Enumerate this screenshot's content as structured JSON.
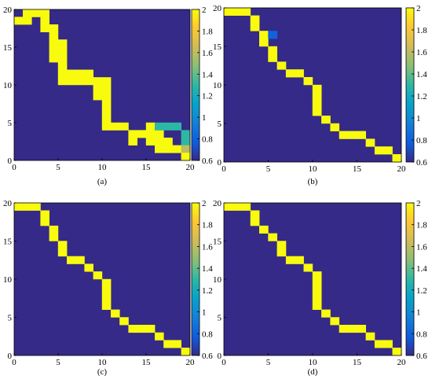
{
  "chart_data": [
    {
      "type": "heatmap",
      "caption": "(a)",
      "grid_size": 20,
      "xlim": [
        0,
        20
      ],
      "ylim": [
        0,
        20
      ],
      "xticks": [
        "0",
        "5",
        "10",
        "15",
        "20"
      ],
      "yticks": [
        "0",
        "5",
        "10",
        "15",
        "20"
      ],
      "clim": [
        0.6,
        2
      ],
      "colorbar_ticks": [
        "0.6",
        "0.8",
        "1",
        "1.2",
        "1.4",
        "1.6",
        "1.8",
        "2"
      ],
      "background_value": 0.6,
      "cells": [
        {
          "x": 0,
          "y": 18,
          "v": 2
        },
        {
          "x": 1,
          "y": 18,
          "v": 2
        },
        {
          "x": 1,
          "y": 19,
          "v": 2
        },
        {
          "x": 2,
          "y": 19,
          "v": 2
        },
        {
          "x": 3,
          "y": 19,
          "v": 2
        },
        {
          "x": 3,
          "y": 17,
          "v": 2
        },
        {
          "x": 3,
          "y": 18,
          "v": 2
        },
        {
          "x": 4,
          "y": 16,
          "v": 2
        },
        {
          "x": 4,
          "y": 17,
          "v": 2
        },
        {
          "x": 4,
          "y": 15,
          "v": 2
        },
        {
          "x": 5,
          "y": 15,
          "v": 2
        },
        {
          "x": 4,
          "y": 13,
          "v": 2
        },
        {
          "x": 5,
          "y": 13,
          "v": 2
        },
        {
          "x": 4,
          "y": 14,
          "v": 2
        },
        {
          "x": 5,
          "y": 14,
          "v": 2
        },
        {
          "x": 5,
          "y": 12,
          "v": 2
        },
        {
          "x": 5,
          "y": 10,
          "v": 2
        },
        {
          "x": 5,
          "y": 11,
          "v": 2
        },
        {
          "x": 6,
          "y": 10,
          "v": 2
        },
        {
          "x": 6,
          "y": 11,
          "v": 2
        },
        {
          "x": 7,
          "y": 10,
          "v": 2
        },
        {
          "x": 7,
          "y": 11,
          "v": 2
        },
        {
          "x": 8,
          "y": 10,
          "v": 2
        },
        {
          "x": 8,
          "y": 11,
          "v": 2
        },
        {
          "x": 9,
          "y": 9,
          "v": 2
        },
        {
          "x": 9,
          "y": 10,
          "v": 2
        },
        {
          "x": 10,
          "y": 9,
          "v": 2
        },
        {
          "x": 10,
          "y": 10,
          "v": 2
        },
        {
          "x": 9,
          "y": 8,
          "v": 2
        },
        {
          "x": 10,
          "y": 8,
          "v": 2
        },
        {
          "x": 10,
          "y": 7,
          "v": 2
        },
        {
          "x": 10,
          "y": 4,
          "v": 2
        },
        {
          "x": 10,
          "y": 5,
          "v": 2
        },
        {
          "x": 10,
          "y": 6,
          "v": 2
        },
        {
          "x": 11,
          "y": 4,
          "v": 2
        },
        {
          "x": 12,
          "y": 4,
          "v": 2
        },
        {
          "x": 13,
          "y": 3,
          "v": 2
        },
        {
          "x": 14,
          "y": 3,
          "v": 2
        },
        {
          "x": 13,
          "y": 2,
          "v": 2
        },
        {
          "x": 15,
          "y": 2,
          "v": 2
        },
        {
          "x": 15,
          "y": 3,
          "v": 2
        },
        {
          "x": 15,
          "y": 4,
          "v": 2
        },
        {
          "x": 16,
          "y": 3,
          "v": 2
        },
        {
          "x": 16,
          "y": 2,
          "v": 2
        },
        {
          "x": 17,
          "y": 2,
          "v": 2
        },
        {
          "x": 16,
          "y": 1,
          "v": 2
        },
        {
          "x": 17,
          "y": 1,
          "v": 2
        },
        {
          "x": 18,
          "y": 1,
          "v": 2
        },
        {
          "x": 16,
          "y": 4,
          "v": 1.3
        },
        {
          "x": 17,
          "y": 4,
          "v": 1.3
        },
        {
          "x": 18,
          "y": 4,
          "v": 1.3
        },
        {
          "x": 19,
          "y": 3,
          "v": 1.3
        },
        {
          "x": 19,
          "y": 2,
          "v": 1.3
        },
        {
          "x": 19,
          "y": 1,
          "v": 1.6
        },
        {
          "x": 19,
          "y": 0,
          "v": 2
        }
      ]
    },
    {
      "type": "heatmap",
      "caption": "(b)",
      "grid_size": 20,
      "xlim": [
        0,
        20
      ],
      "ylim": [
        0,
        20
      ],
      "xticks": [
        "0",
        "5",
        "10",
        "15",
        "20"
      ],
      "yticks": [
        "0",
        "5",
        "10",
        "15",
        "20"
      ],
      "clim": [
        0.6,
        2
      ],
      "colorbar_ticks": [
        "0.6",
        "0.8",
        "1",
        "1.2",
        "1.4",
        "1.6",
        "1.8",
        "2"
      ],
      "background_value": 0.6,
      "cells": [
        {
          "x": 0,
          "y": 19,
          "v": 2
        },
        {
          "x": 1,
          "y": 19,
          "v": 2
        },
        {
          "x": 2,
          "y": 19,
          "v": 2
        },
        {
          "x": 3,
          "y": 17,
          "v": 2
        },
        {
          "x": 3,
          "y": 18,
          "v": 2
        },
        {
          "x": 4,
          "y": 16,
          "v": 2
        },
        {
          "x": 4,
          "y": 15,
          "v": 2
        },
        {
          "x": 5,
          "y": 14,
          "v": 2
        },
        {
          "x": 5,
          "y": 13,
          "v": 2
        },
        {
          "x": 5,
          "y": 16,
          "v": 0.8
        },
        {
          "x": 6,
          "y": 12,
          "v": 2
        },
        {
          "x": 7,
          "y": 11,
          "v": 2
        },
        {
          "x": 8,
          "y": 11,
          "v": 2
        },
        {
          "x": 9,
          "y": 10,
          "v": 2
        },
        {
          "x": 10,
          "y": 9,
          "v": 2
        },
        {
          "x": 10,
          "y": 8,
          "v": 2
        },
        {
          "x": 10,
          "y": 7,
          "v": 2
        },
        {
          "x": 10,
          "y": 6,
          "v": 2
        },
        {
          "x": 11,
          "y": 5,
          "v": 2
        },
        {
          "x": 12,
          "y": 4,
          "v": 2
        },
        {
          "x": 13,
          "y": 3,
          "v": 2
        },
        {
          "x": 14,
          "y": 3,
          "v": 2
        },
        {
          "x": 15,
          "y": 3,
          "v": 2
        },
        {
          "x": 16,
          "y": 2,
          "v": 2
        },
        {
          "x": 17,
          "y": 1,
          "v": 2
        },
        {
          "x": 18,
          "y": 1,
          "v": 2
        },
        {
          "x": 19,
          "y": 0,
          "v": 2
        }
      ]
    },
    {
      "type": "heatmap",
      "caption": "(c)",
      "grid_size": 20,
      "xlim": [
        0,
        20
      ],
      "ylim": [
        0,
        20
      ],
      "xticks": [
        "0",
        "5",
        "10",
        "15",
        "20"
      ],
      "yticks": [
        "0",
        "5",
        "10",
        "15",
        "20"
      ],
      "clim": [
        0.6,
        2
      ],
      "colorbar_ticks": [
        "0.6",
        "0.8",
        "1",
        "1.2",
        "1.4",
        "1.6",
        "1.8",
        "2"
      ],
      "background_value": 0.6,
      "cells": [
        {
          "x": 0,
          "y": 19,
          "v": 2
        },
        {
          "x": 1,
          "y": 19,
          "v": 2
        },
        {
          "x": 2,
          "y": 19,
          "v": 2
        },
        {
          "x": 3,
          "y": 17,
          "v": 2
        },
        {
          "x": 3,
          "y": 18,
          "v": 2
        },
        {
          "x": 4,
          "y": 16,
          "v": 2
        },
        {
          "x": 4,
          "y": 15,
          "v": 2
        },
        {
          "x": 5,
          "y": 14,
          "v": 2
        },
        {
          "x": 5,
          "y": 13,
          "v": 2
        },
        {
          "x": 6,
          "y": 12,
          "v": 2
        },
        {
          "x": 7,
          "y": 12,
          "v": 2
        },
        {
          "x": 8,
          "y": 11,
          "v": 2
        },
        {
          "x": 9,
          "y": 10,
          "v": 2
        },
        {
          "x": 10,
          "y": 9,
          "v": 2
        },
        {
          "x": 10,
          "y": 8,
          "v": 2
        },
        {
          "x": 10,
          "y": 7,
          "v": 2
        },
        {
          "x": 10,
          "y": 6,
          "v": 2
        },
        {
          "x": 11,
          "y": 5,
          "v": 2
        },
        {
          "x": 12,
          "y": 4,
          "v": 2
        },
        {
          "x": 13,
          "y": 3,
          "v": 2
        },
        {
          "x": 14,
          "y": 3,
          "v": 2
        },
        {
          "x": 15,
          "y": 3,
          "v": 2
        },
        {
          "x": 16,
          "y": 2,
          "v": 2
        },
        {
          "x": 17,
          "y": 1,
          "v": 2
        },
        {
          "x": 18,
          "y": 1,
          "v": 2
        },
        {
          "x": 19,
          "y": 0,
          "v": 2
        }
      ]
    },
    {
      "type": "heatmap",
      "caption": "(d)",
      "grid_size": 20,
      "xlim": [
        0,
        20
      ],
      "ylim": [
        0,
        20
      ],
      "xticks": [
        "0",
        "5",
        "10",
        "15",
        "20"
      ],
      "yticks": [
        "0",
        "5",
        "10",
        "15",
        "20"
      ],
      "clim": [
        0.6,
        2
      ],
      "colorbar_ticks": [
        "0.6",
        "0.8",
        "1",
        "1.2",
        "1.4",
        "1.6",
        "1.8",
        "2"
      ],
      "background_value": 0.6,
      "cells": [
        {
          "x": 0,
          "y": 19,
          "v": 2
        },
        {
          "x": 1,
          "y": 19,
          "v": 2
        },
        {
          "x": 2,
          "y": 19,
          "v": 2
        },
        {
          "x": 3,
          "y": 17,
          "v": 2
        },
        {
          "x": 3,
          "y": 18,
          "v": 2
        },
        {
          "x": 4,
          "y": 16,
          "v": 2
        },
        {
          "x": 5,
          "y": 15,
          "v": 2
        },
        {
          "x": 6,
          "y": 14,
          "v": 2
        },
        {
          "x": 6,
          "y": 13,
          "v": 2
        },
        {
          "x": 7,
          "y": 12,
          "v": 2
        },
        {
          "x": 8,
          "y": 12,
          "v": 2
        },
        {
          "x": 9,
          "y": 11,
          "v": 2
        },
        {
          "x": 10,
          "y": 10,
          "v": 2
        },
        {
          "x": 10,
          "y": 9,
          "v": 2
        },
        {
          "x": 10,
          "y": 8,
          "v": 2
        },
        {
          "x": 10,
          "y": 7,
          "v": 2
        },
        {
          "x": 10,
          "y": 6,
          "v": 2
        },
        {
          "x": 11,
          "y": 5,
          "v": 2
        },
        {
          "x": 12,
          "y": 4,
          "v": 2
        },
        {
          "x": 13,
          "y": 3,
          "v": 2
        },
        {
          "x": 14,
          "y": 3,
          "v": 2
        },
        {
          "x": 15,
          "y": 3,
          "v": 2
        },
        {
          "x": 16,
          "y": 2,
          "v": 2
        },
        {
          "x": 17,
          "y": 1,
          "v": 2
        },
        {
          "x": 18,
          "y": 1,
          "v": 2
        },
        {
          "x": 19,
          "y": 0,
          "v": 2
        }
      ]
    }
  ]
}
